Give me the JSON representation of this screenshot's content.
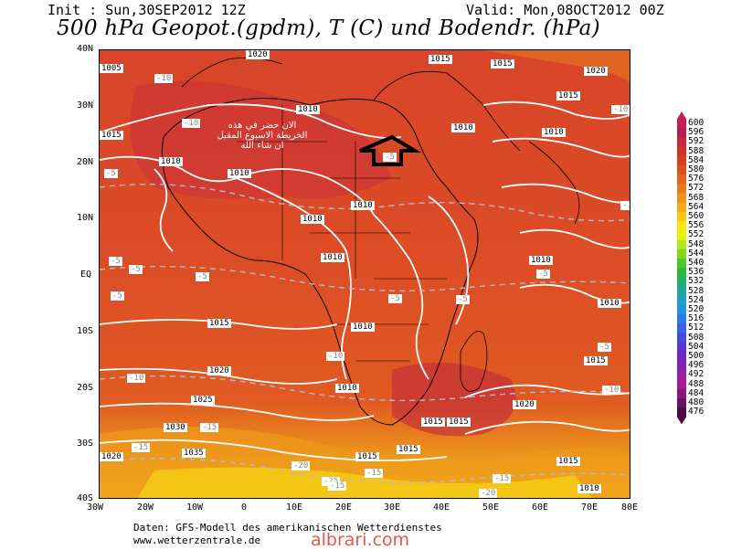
{
  "header": {
    "init": "Init : Sun,30SEP2012 12Z",
    "valid": "Valid: Mon,08OCT2012 00Z",
    "title": "500 hPa Geopot.(gpdm), T (C) und Bodendr. (hPa)"
  },
  "axes": {
    "lat_labels": [
      "40N",
      "30N",
      "20N",
      "10N",
      "EQ",
      "10S",
      "20S",
      "30S",
      "40S"
    ],
    "lon_labels": [
      "30W",
      "20W",
      "10W",
      "0",
      "10E",
      "20E",
      "30E",
      "40E",
      "50E",
      "60E",
      "70E",
      "80E"
    ]
  },
  "legend": {
    "values": [
      "600",
      "596",
      "592",
      "588",
      "584",
      "580",
      "576",
      "572",
      "568",
      "564",
      "560",
      "556",
      "552",
      "548",
      "544",
      "540",
      "536",
      "532",
      "528",
      "524",
      "520",
      "516",
      "512",
      "508",
      "504",
      "500",
      "496",
      "492",
      "488",
      "484",
      "480",
      "476"
    ],
    "colors": [
      "#c81e5a",
      "#b41e50",
      "#c8283c",
      "#d23228",
      "#d84020",
      "#de5020",
      "#e4641e",
      "#ea7a1c",
      "#f0921a",
      "#f4aa16",
      "#f8c812",
      "#fae60e",
      "#e6f00c",
      "#b4e614",
      "#80d820",
      "#4cc82c",
      "#2cb83c",
      "#20b070",
      "#20a8a0",
      "#20a0c8",
      "#2490e0",
      "#2c78e8",
      "#3860e8",
      "#4448e0",
      "#5a34d8",
      "#7028c8",
      "#8420b8",
      "#9a1ca8",
      "#a8189a",
      "#8c147e",
      "#6c1060",
      "#4a0c44"
    ]
  },
  "pressure_labels": [
    {
      "text": "1020"
    },
    {
      "text": "1015"
    },
    {
      "text": "1010"
    },
    {
      "text": "1005"
    },
    {
      "text": "1025"
    },
    {
      "text": "1030"
    },
    {
      "text": "1035"
    },
    {
      "text": "1020"
    },
    {
      "text": "1015"
    },
    {
      "text": "1010"
    },
    {
      "text": "1015"
    },
    {
      "text": "1010"
    },
    {
      "text": "1010"
    },
    {
      "text": "1010"
    },
    {
      "text": "1010"
    },
    {
      "text": "1010"
    },
    {
      "text": "1015"
    },
    {
      "text": "1020"
    },
    {
      "text": "1010"
    },
    {
      "text": "1015"
    },
    {
      "text": "1010"
    },
    {
      "text": "1010"
    },
    {
      "text": "1010"
    },
    {
      "text": "1015"
    },
    {
      "text": "1015"
    },
    {
      "text": "1010"
    },
    {
      "text": "1015"
    },
    {
      "text": "1020"
    },
    {
      "text": "1015"
    },
    {
      "text": "1020"
    },
    {
      "text": "1015"
    },
    {
      "text": "1010"
    },
    {
      "text": "1015"
    }
  ],
  "temp_labels": [
    {
      "text": "-5"
    },
    {
      "text": "-10"
    },
    {
      "text": "-5"
    },
    {
      "text": "-10"
    },
    {
      "text": "-5"
    },
    {
      "text": "-5"
    },
    {
      "text": "-5"
    },
    {
      "text": "-5"
    },
    {
      "text": "-5"
    },
    {
      "text": "-10"
    },
    {
      "text": "-10"
    },
    {
      "text": "-15"
    },
    {
      "text": "-15"
    },
    {
      "text": "-20"
    },
    {
      "text": "-25"
    },
    {
      "text": "-15"
    },
    {
      "text": "-20"
    },
    {
      "text": "-10"
    },
    {
      "text": "-15"
    },
    {
      "text": "-5"
    },
    {
      "text": "-5"
    },
    {
      "text": "-5"
    },
    {
      "text": "-10"
    },
    {
      "text": "-15"
    },
    {
      "text": "-10"
    }
  ],
  "annotation": {
    "line1": "الان حضر في هذه",
    "line2": "الخريطة الاسبوع المقبل",
    "line3": "ان شاء الله"
  },
  "footer": {
    "line1": "Daten: GFS-Modell des amerikanischen Wetterdienstes",
    "line2": "www.wetterzentrale.de",
    "watermark": "albrari.com"
  }
}
